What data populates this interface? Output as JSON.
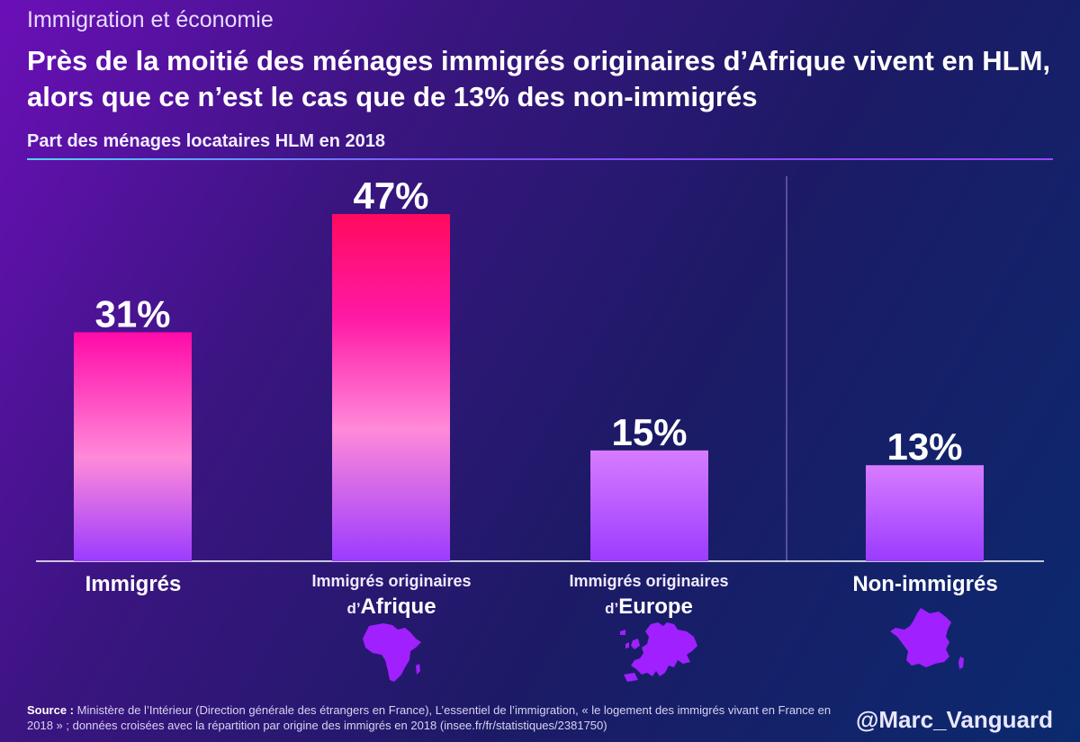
{
  "header": {
    "kicker": "Immigration et économie",
    "title": "Près de la moitié des ménages immigrés originaires d’Afrique vivent en HLM, alors que ce n’est le cas que de 13% des non-immigrés",
    "subtitle": "Part des ménages locataires HLM en 2018"
  },
  "chart_data": {
    "type": "bar",
    "categories": [
      "Immigrés",
      "Immigrés originaires d’Afrique",
      "Immigrés originaires d’Europe",
      "Non-immigrés"
    ],
    "values": [
      31,
      47,
      15,
      13
    ],
    "value_labels": [
      "31%",
      "47%",
      "15%",
      "13%"
    ],
    "unit": "%",
    "ylim": [
      0,
      50
    ],
    "grid": false,
    "legend": "none"
  },
  "labels": {
    "immigres": "Immigrés",
    "afrique_line1": "Immigrés originaires",
    "afrique_prefix": "d’",
    "afrique_main": "Afrique",
    "europe_line1": "Immigrés originaires",
    "europe_prefix": "d’",
    "europe_main": "Europe",
    "non_immigres": "Non-immigrés"
  },
  "icons": {
    "africa": "africa-map-icon",
    "europe": "europe-map-icon",
    "france": "france-map-icon"
  },
  "colors": {
    "bar_top": "#ff0aa8",
    "bar_top_afrique": "#ff0a5e",
    "bar_mid": "#ff7fd6",
    "bar_bottom": "#9b3bff",
    "map": "#a020ff"
  },
  "footer": {
    "source_label": "Source :",
    "source_text": "Ministère de l’Intérieur (Direction générale des étrangers en France), L’essentiel de l’immigration, « le logement des immigrés vivant en France en 2018 » ; données croisées avec la répartition par origine des immigrés en 2018 (insee.fr/fr/statistiques/2381750)",
    "handle": "@Marc_Vanguard"
  }
}
